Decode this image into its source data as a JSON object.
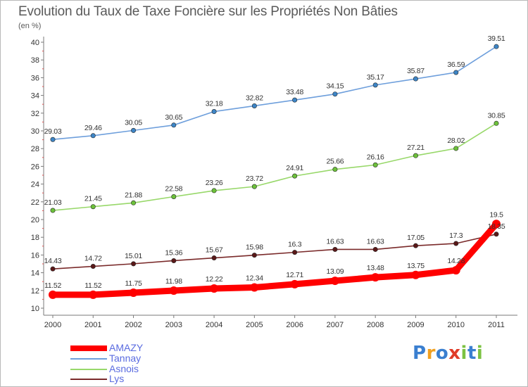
{
  "title": "Evolution du Taux de Taxe Foncière sur les Propriétés Non Bâties",
  "subtitle": "(en %)",
  "logo": {
    "text": "Proxiti",
    "letters": [
      {
        "ch": "P",
        "color": "#3a7fd0"
      },
      {
        "ch": "r",
        "color": "#f0a020"
      },
      {
        "ch": "o",
        "color": "#3a7fd0"
      },
      {
        "ch": "x",
        "color": "#e03c28"
      },
      {
        "ch": "i",
        "color": "#7cc242"
      },
      {
        "ch": "t",
        "color": "#3a7fd0"
      },
      {
        "ch": "i",
        "color": "#7cc242"
      }
    ]
  },
  "chart_data": {
    "type": "line",
    "x": [
      "2000",
      "2001",
      "2002",
      "2003",
      "2004",
      "2005",
      "2006",
      "2007",
      "2008",
      "2009",
      "2010",
      "2011"
    ],
    "ylim": [
      10,
      40
    ],
    "yticks": [
      "10",
      "12",
      "14",
      "16",
      "18",
      "20",
      "22",
      "24",
      "26",
      "28",
      "30",
      "32",
      "34",
      "36",
      "38",
      "40"
    ],
    "grid": false,
    "legend_position": "bottom-left",
    "series": [
      {
        "name": "Tannay",
        "color": "#6e9fdc",
        "marker_color": "#3d85c6",
        "values": [
          29.03,
          29.46,
          30.05,
          30.65,
          32.18,
          32.82,
          33.48,
          34.15,
          35.17,
          35.87,
          36.59,
          39.51
        ],
        "labels": [
          "29.03",
          "29.46",
          "30.05",
          "30.65",
          "32.18",
          "32.82",
          "33.48",
          "34.15",
          "35.17",
          "35.87",
          "36.59",
          "39.51"
        ]
      },
      {
        "name": "Asnois",
        "color": "#98d86a",
        "marker_color": "#6cc13a",
        "values": [
          21.03,
          21.45,
          21.88,
          22.58,
          23.26,
          23.72,
          24.91,
          25.66,
          26.16,
          27.21,
          28.02,
          30.85
        ],
        "labels": [
          "21.03",
          "21.45",
          "21.88",
          "22.58",
          "23.26",
          "23.72",
          "24.91",
          "25.66",
          "26.16",
          "27.21",
          "28.02",
          "30.85"
        ]
      },
      {
        "name": "Lys",
        "color": "#7a2a2a",
        "marker_color": "#5a1818",
        "values": [
          14.43,
          14.72,
          15.01,
          15.36,
          15.67,
          15.98,
          16.3,
          16.63,
          16.63,
          17.05,
          17.3,
          18.35
        ],
        "labels": [
          "14.43",
          "14.72",
          "15.01",
          "15.36",
          "15.67",
          "15.98",
          "16.3",
          "16.63",
          "16.63",
          "17.05",
          "17.3",
          "18.35"
        ]
      },
      {
        "name": "AMAZY",
        "color": "#ff0000",
        "marker_color": "#ff0000",
        "values": [
          11.52,
          11.52,
          11.75,
          11.98,
          12.22,
          12.34,
          12.71,
          13.09,
          13.48,
          13.75,
          14.28,
          19.5
        ],
        "labels": [
          "11.52",
          "11.52",
          "11.75",
          "11.98",
          "12.22",
          "12.34",
          "12.71",
          "13.09",
          "13.48",
          "13.75",
          "14.28",
          "19.5"
        ]
      }
    ],
    "legend": [
      "AMAZY",
      "Tannay",
      "Asnois",
      "Lys"
    ]
  }
}
